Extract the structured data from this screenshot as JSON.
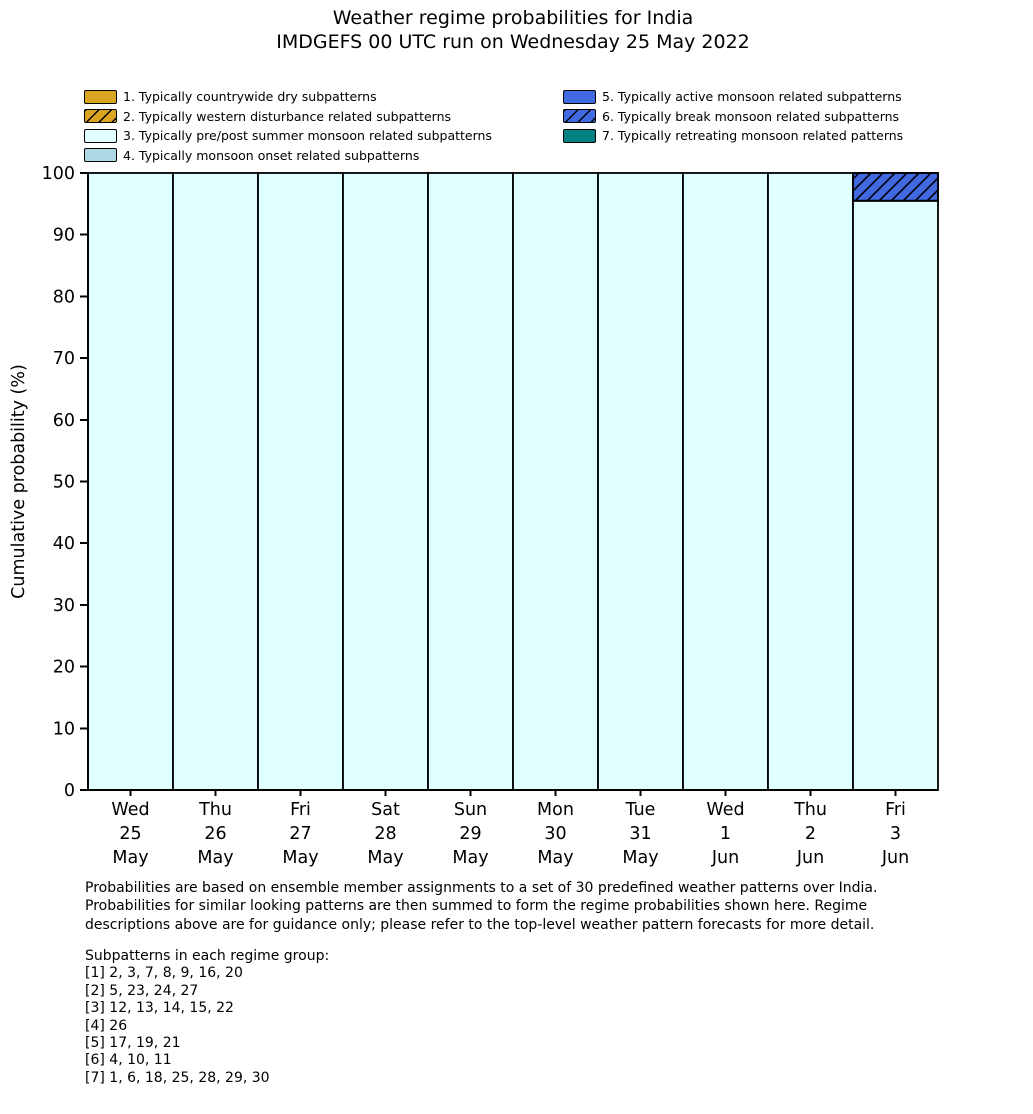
{
  "title": {
    "line1": "Weather regime probabilities for India",
    "line2": "IMDGEFS 00 UTC run on Wednesday 25 May 2022"
  },
  "chart_data": {
    "type": "bar",
    "stacked": true,
    "title": "Weather regime probabilities for India",
    "subtitle": "IMDGEFS 00 UTC run on Wednesday 25 May 2022",
    "xlabel": "",
    "ylabel": "Cumulative probability (%)",
    "ylim": [
      0,
      100
    ],
    "yticks": [
      0,
      10,
      20,
      30,
      40,
      50,
      60,
      70,
      80,
      90,
      100
    ],
    "grid": false,
    "legend_position": "top",
    "categories": [
      [
        "Wed",
        "25",
        "May"
      ],
      [
        "Thu",
        "26",
        "May"
      ],
      [
        "Fri",
        "27",
        "May"
      ],
      [
        "Sat",
        "28",
        "May"
      ],
      [
        "Sun",
        "29",
        "May"
      ],
      [
        "Mon",
        "30",
        "May"
      ],
      [
        "Tue",
        "31",
        "May"
      ],
      [
        "Wed",
        "1",
        "Jun"
      ],
      [
        "Thu",
        "2",
        "Jun"
      ],
      [
        "Fri",
        "3",
        "Jun"
      ]
    ],
    "series": [
      {
        "name": "1. Typically countrywide dry subpatterns",
        "color": "#DAA520",
        "hatch": false,
        "values": [
          0,
          0,
          0,
          0,
          0,
          0,
          0,
          0,
          0,
          0
        ]
      },
      {
        "name": "2. Typically western disturbance related subpatterns",
        "color": "#DAA520",
        "hatch": true,
        "values": [
          0,
          0,
          0,
          0,
          0,
          0,
          0,
          0,
          0,
          0
        ]
      },
      {
        "name": "3. Typically pre/post summer monsoon related subpatterns",
        "color": "#E0FFFF",
        "hatch": false,
        "values": [
          100,
          100,
          100,
          100,
          100,
          100,
          100,
          100,
          100,
          95.5
        ]
      },
      {
        "name": "4. Typically monsoon onset related subpatterns",
        "color": "#ADD8E6",
        "hatch": false,
        "values": [
          0,
          0,
          0,
          0,
          0,
          0,
          0,
          0,
          0,
          0
        ]
      },
      {
        "name": "5. Typically active monsoon related subpatterns",
        "color": "#4169E1",
        "hatch": false,
        "values": [
          0,
          0,
          0,
          0,
          0,
          0,
          0,
          0,
          0,
          0
        ]
      },
      {
        "name": "6. Typically break monsoon related subpatterns",
        "color": "#4169E1",
        "hatch": true,
        "values": [
          0,
          0,
          0,
          0,
          0,
          0,
          0,
          0,
          0,
          4.5
        ]
      },
      {
        "name": "7. Typically retreating monsoon related patterns",
        "color": "#008080",
        "hatch": false,
        "values": [
          0,
          0,
          0,
          0,
          0,
          0,
          0,
          0,
          0,
          0
        ]
      }
    ]
  },
  "footnote": {
    "lines": [
      "Probabilities are based on ensemble member assignments to a set of 30 predefined weather patterns over India.",
      "Probabilities for similar looking patterns are then summed to form the regime probabilities shown here. Regime",
      "descriptions above are for guidance only; please refer to the top-level weather pattern forecasts for more detail."
    ]
  },
  "subpatterns": {
    "heading": "Subpatterns in each regime group:",
    "lines": [
      "[1] 2, 3, 7, 8, 9, 16, 20",
      "[2] 5, 23, 24, 27",
      "[3] 12, 13, 14, 15, 22",
      "[4] 26",
      "[5] 17, 19, 21",
      "[6] 4, 10, 11",
      "[7] 1, 6, 18, 25, 28, 29, 30"
    ]
  }
}
